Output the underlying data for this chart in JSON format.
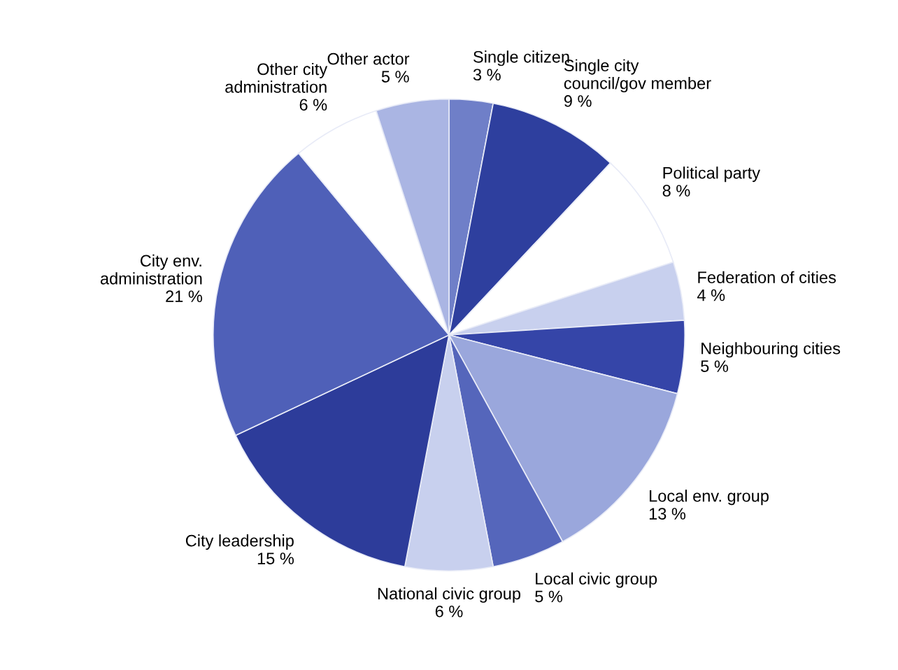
{
  "chart_data": {
    "type": "pie",
    "categories": [
      "Single citizen",
      "Single city\ncouncil/gov member",
      "Political party",
      "Federation of cities",
      "Neighbouring cities",
      "Local env. group",
      "Local civic group",
      "National civic group",
      "City leadership",
      "City env.\nadministration",
      "Other city\nadministration",
      "Other actor"
    ],
    "values": [
      3,
      9,
      8,
      4,
      5,
      13,
      5,
      6,
      15,
      21,
      6,
      5
    ],
    "value_labels": [
      "3 %",
      "9 %",
      "8 %",
      "4 %",
      "5 %",
      "13 %",
      "5 %",
      "6 %",
      "15 %",
      "21 %",
      "6 %",
      "5 %"
    ],
    "colors": [
      "#6f7fc8",
      "#2e3f9e",
      "#ffffff",
      "#c8d0ee",
      "#3545a8",
      "#9aa7dc",
      "#5566bb",
      "#c8d0ee",
      "#2d3c9a",
      "#4f60b8",
      "#ffffff",
      "#aab5e3"
    ]
  }
}
